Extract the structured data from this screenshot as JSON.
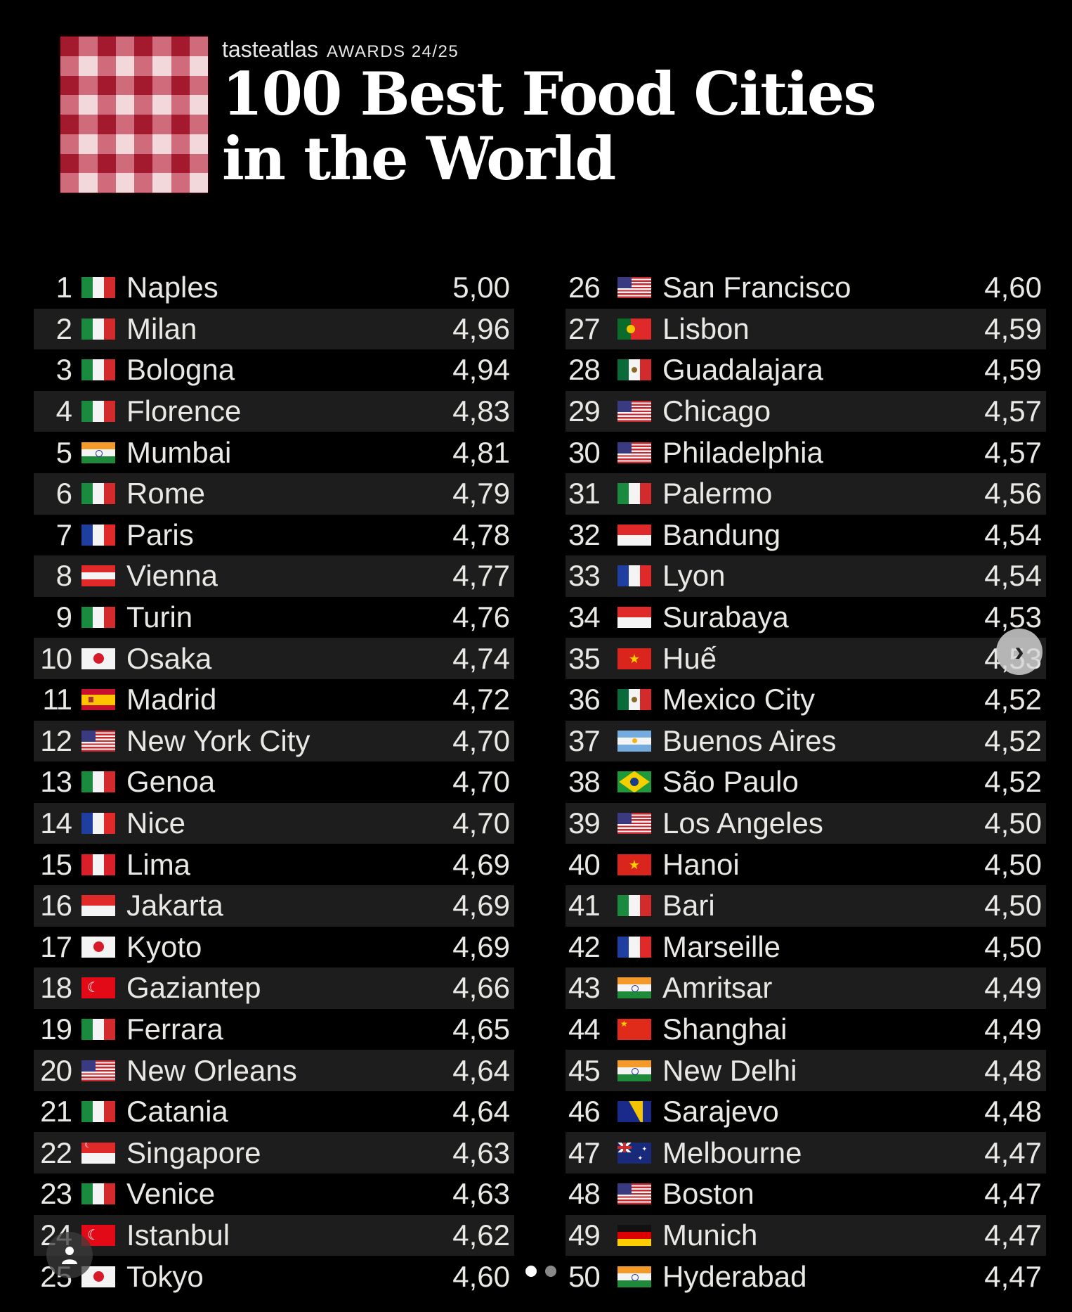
{
  "header": {
    "brand": "tasteatlas",
    "awards": "AWARDS 24/25",
    "title_line1": "100 Best Food Cities",
    "title_line2": "in the World"
  },
  "colors": {
    "checker_dark": "#a3192e",
    "checker_mid": "#cf6b7a",
    "checker_light": "#f2d8db",
    "row_alt": "#1d1d1d",
    "background": "#000000"
  },
  "ranking_left": [
    {
      "rank": "1",
      "city": "Naples",
      "score": "5,00",
      "flag": "it"
    },
    {
      "rank": "2",
      "city": "Milan",
      "score": "4,96",
      "flag": "it"
    },
    {
      "rank": "3",
      "city": "Bologna",
      "score": "4,94",
      "flag": "it"
    },
    {
      "rank": "4",
      "city": "Florence",
      "score": "4,83",
      "flag": "it"
    },
    {
      "rank": "5",
      "city": "Mumbai",
      "score": "4,81",
      "flag": "in"
    },
    {
      "rank": "6",
      "city": "Rome",
      "score": "4,79",
      "flag": "it"
    },
    {
      "rank": "7",
      "city": "Paris",
      "score": "4,78",
      "flag": "fr"
    },
    {
      "rank": "8",
      "city": "Vienna",
      "score": "4,77",
      "flag": "at"
    },
    {
      "rank": "9",
      "city": "Turin",
      "score": "4,76",
      "flag": "it"
    },
    {
      "rank": "10",
      "city": "Osaka",
      "score": "4,74",
      "flag": "jp"
    },
    {
      "rank": "11",
      "city": "Madrid",
      "score": "4,72",
      "flag": "es"
    },
    {
      "rank": "12",
      "city": "New York City",
      "score": "4,70",
      "flag": "us"
    },
    {
      "rank": "13",
      "city": "Genoa",
      "score": "4,70",
      "flag": "it"
    },
    {
      "rank": "14",
      "city": "Nice",
      "score": "4,70",
      "flag": "fr"
    },
    {
      "rank": "15",
      "city": "Lima",
      "score": "4,69",
      "flag": "pe"
    },
    {
      "rank": "16",
      "city": "Jakarta",
      "score": "4,69",
      "flag": "id"
    },
    {
      "rank": "17",
      "city": "Kyoto",
      "score": "4,69",
      "flag": "jp"
    },
    {
      "rank": "18",
      "city": "Gaziantep",
      "score": "4,66",
      "flag": "tr"
    },
    {
      "rank": "19",
      "city": "Ferrara",
      "score": "4,65",
      "flag": "it"
    },
    {
      "rank": "20",
      "city": "New Orleans",
      "score": "4,64",
      "flag": "us"
    },
    {
      "rank": "21",
      "city": "Catania",
      "score": "4,64",
      "flag": "it"
    },
    {
      "rank": "22",
      "city": "Singapore",
      "score": "4,63",
      "flag": "sg"
    },
    {
      "rank": "23",
      "city": "Venice",
      "score": "4,63",
      "flag": "it"
    },
    {
      "rank": "24",
      "city": "Istanbul",
      "score": "4,62",
      "flag": "tr"
    },
    {
      "rank": "25",
      "city": "Tokyo",
      "score": "4,60",
      "flag": "jp"
    }
  ],
  "ranking_right": [
    {
      "rank": "26",
      "city": "San Francisco",
      "score": "4,60",
      "flag": "us"
    },
    {
      "rank": "27",
      "city": "Lisbon",
      "score": "4,59",
      "flag": "pt"
    },
    {
      "rank": "28",
      "city": "Guadalajara",
      "score": "4,59",
      "flag": "mx"
    },
    {
      "rank": "29",
      "city": "Chicago",
      "score": "4,57",
      "flag": "us"
    },
    {
      "rank": "30",
      "city": "Philadelphia",
      "score": "4,57",
      "flag": "us"
    },
    {
      "rank": "31",
      "city": "Palermo",
      "score": "4,56",
      "flag": "it"
    },
    {
      "rank": "32",
      "city": "Bandung",
      "score": "4,54",
      "flag": "id"
    },
    {
      "rank": "33",
      "city": "Lyon",
      "score": "4,54",
      "flag": "fr"
    },
    {
      "rank": "34",
      "city": "Surabaya",
      "score": "4,53",
      "flag": "id"
    },
    {
      "rank": "35",
      "city": "Huế",
      "score": "4,53",
      "flag": "vn"
    },
    {
      "rank": "36",
      "city": "Mexico City",
      "score": "4,52",
      "flag": "mx"
    },
    {
      "rank": "37",
      "city": "Buenos Aires",
      "score": "4,52",
      "flag": "ar"
    },
    {
      "rank": "38",
      "city": "São Paulo",
      "score": "4,52",
      "flag": "br"
    },
    {
      "rank": "39",
      "city": "Los Angeles",
      "score": "4,50",
      "flag": "us"
    },
    {
      "rank": "40",
      "city": "Hanoi",
      "score": "4,50",
      "flag": "vn"
    },
    {
      "rank": "41",
      "city": "Bari",
      "score": "4,50",
      "flag": "it"
    },
    {
      "rank": "42",
      "city": "Marseille",
      "score": "4,50",
      "flag": "fr"
    },
    {
      "rank": "43",
      "city": "Amritsar",
      "score": "4,49",
      "flag": "in"
    },
    {
      "rank": "44",
      "city": "Shanghai",
      "score": "4,49",
      "flag": "cn"
    },
    {
      "rank": "45",
      "city": "New Delhi",
      "score": "4,48",
      "flag": "in"
    },
    {
      "rank": "46",
      "city": "Sarajevo",
      "score": "4,48",
      "flag": "ba"
    },
    {
      "rank": "47",
      "city": "Melbourne",
      "score": "4,47",
      "flag": "au"
    },
    {
      "rank": "48",
      "city": "Boston",
      "score": "4,47",
      "flag": "us"
    },
    {
      "rank": "49",
      "city": "Munich",
      "score": "4,47",
      "flag": "de"
    },
    {
      "rank": "50",
      "city": "Hyderabad",
      "score": "4,47",
      "flag": "in"
    }
  ],
  "controls": {
    "next_icon": "chevron-right-icon",
    "user_icon": "user-icon",
    "carousel_pages": 2,
    "carousel_active": 0
  }
}
